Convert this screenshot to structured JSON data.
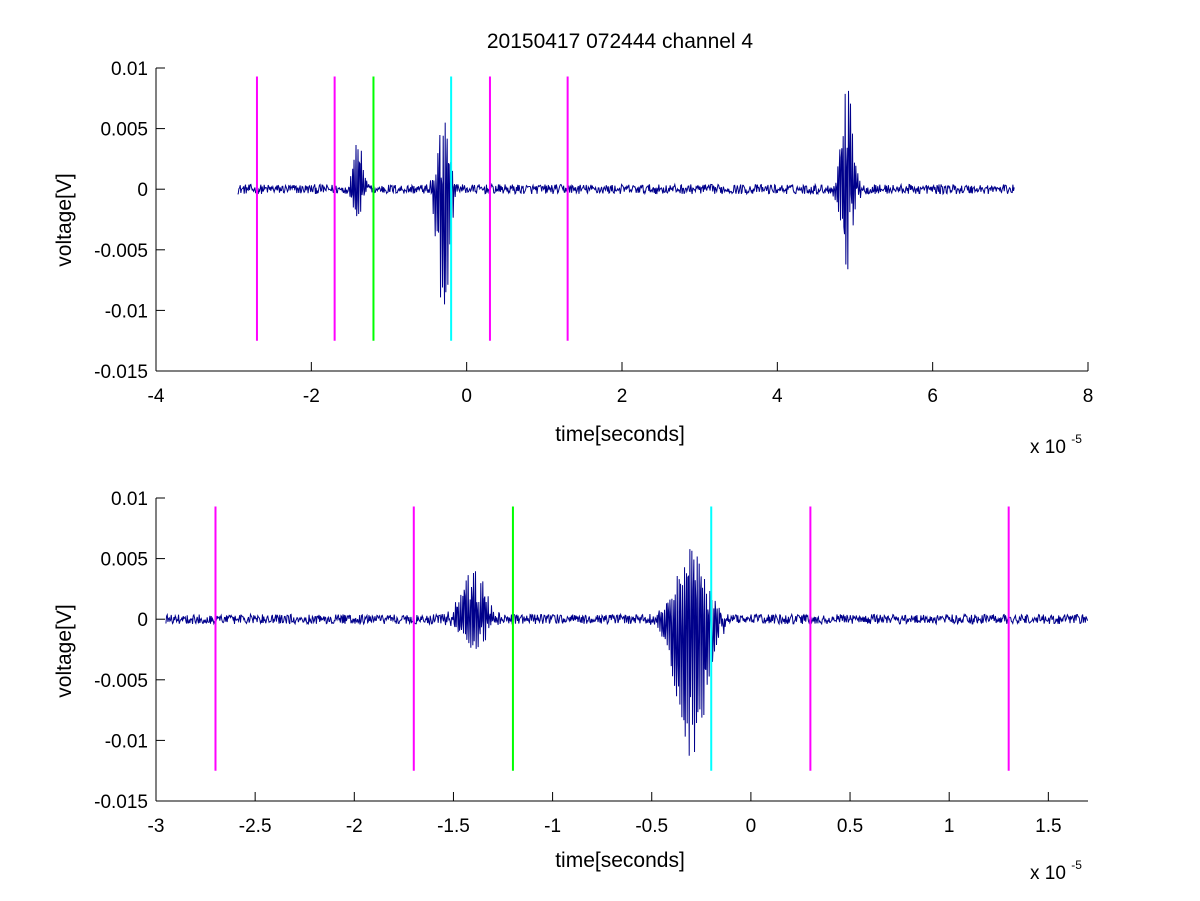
{
  "figure": {
    "title": "20150417 072444 channel 4"
  },
  "colors": {
    "signal": "#00008b",
    "magenta": "#ff00ff",
    "green": "#00ff00",
    "cyan": "#00ffff",
    "axes": "#000000",
    "background": "#ffffff"
  },
  "chart_data": [
    {
      "type": "line",
      "title": "20150417 072444 channel 4",
      "xlabel": "time[seconds]",
      "ylabel": "voltage[V]",
      "x_exponent_base": "x 10",
      "x_exponent_power": "-5",
      "xlim": [
        -4,
        8
      ],
      "ylim": [
        -0.015,
        0.01
      ],
      "grid": false,
      "legend": "none",
      "xticks": [
        -4,
        -2,
        0,
        2,
        4,
        6,
        8
      ],
      "xtick_labels": [
        "-4",
        "-2",
        "0",
        "2",
        "4",
        "6",
        "8"
      ],
      "yticks": [
        0.01,
        0.005,
        0,
        -0.005,
        -0.01,
        -0.015
      ],
      "ytick_labels": [
        "0.01",
        "0.005",
        "0",
        "-0.005",
        "-0.01",
        "-0.015"
      ],
      "series": [
        {
          "color": "#00008b",
          "x_range": [
            -2.95,
            7.05
          ],
          "baseline": 0,
          "noise_amplitude": 0.0004,
          "bursts": [
            {
              "center": -1.4,
              "width": 0.12,
              "min": -0.0025,
              "max": 0.004
            },
            {
              "center": -0.3,
              "width": 0.15,
              "min": -0.0115,
              "max": 0.0055
            },
            {
              "center": 4.9,
              "width": 0.15,
              "min": -0.0065,
              "max": 0.0085
            }
          ]
        }
      ],
      "vertical_markers": [
        {
          "x": -2.7,
          "color": "magenta",
          "ymin": -0.0125,
          "ymax": 0.0093
        },
        {
          "x": -1.7,
          "color": "magenta",
          "ymin": -0.0125,
          "ymax": 0.0093
        },
        {
          "x": -1.2,
          "color": "green",
          "ymin": -0.0125,
          "ymax": 0.0093
        },
        {
          "x": -0.2,
          "color": "cyan",
          "ymin": -0.0125,
          "ymax": 0.0093
        },
        {
          "x": 0.3,
          "color": "magenta",
          "ymin": -0.0125,
          "ymax": 0.0093
        },
        {
          "x": 1.3,
          "color": "magenta",
          "ymin": -0.0125,
          "ymax": 0.0093
        }
      ]
    },
    {
      "type": "line",
      "title": "",
      "xlabel": "time[seconds]",
      "ylabel": "voltage[V]",
      "x_exponent_base": "x 10",
      "x_exponent_power": "-5",
      "xlim": [
        -3,
        1.7
      ],
      "ylim": [
        -0.015,
        0.01
      ],
      "grid": false,
      "legend": "none",
      "xticks": [
        -3,
        -2.5,
        -2,
        -1.5,
        -1,
        -0.5,
        0,
        0.5,
        1,
        1.5
      ],
      "xtick_labels": [
        "-3",
        "-2.5",
        "-2",
        "-1.5",
        "-1",
        "-0.5",
        "0",
        "0.5",
        "1",
        "1.5"
      ],
      "yticks": [
        0.01,
        0.005,
        0,
        -0.005,
        -0.01,
        -0.015
      ],
      "ytick_labels": [
        "0.01",
        "0.005",
        "0",
        "-0.005",
        "-0.01",
        "-0.015"
      ],
      "series": [
        {
          "color": "#00008b",
          "x_range": [
            -2.95,
            1.7
          ],
          "baseline": 0,
          "noise_amplitude": 0.0004,
          "bursts": [
            {
              "center": -1.4,
              "width": 0.12,
              "min": -0.0025,
              "max": 0.004
            },
            {
              "center": -0.3,
              "width": 0.15,
              "min": -0.0115,
              "max": 0.0055
            }
          ]
        }
      ],
      "vertical_markers": [
        {
          "x": -2.7,
          "color": "magenta",
          "ymin": -0.0125,
          "ymax": 0.0093
        },
        {
          "x": -1.7,
          "color": "magenta",
          "ymin": -0.0125,
          "ymax": 0.0093
        },
        {
          "x": -1.2,
          "color": "green",
          "ymin": -0.0125,
          "ymax": 0.0093
        },
        {
          "x": -0.2,
          "color": "cyan",
          "ymin": -0.0125,
          "ymax": 0.0093
        },
        {
          "x": 0.3,
          "color": "magenta",
          "ymin": -0.0125,
          "ymax": 0.0093
        },
        {
          "x": 1.3,
          "color": "magenta",
          "ymin": -0.0125,
          "ymax": 0.0093
        }
      ]
    }
  ]
}
